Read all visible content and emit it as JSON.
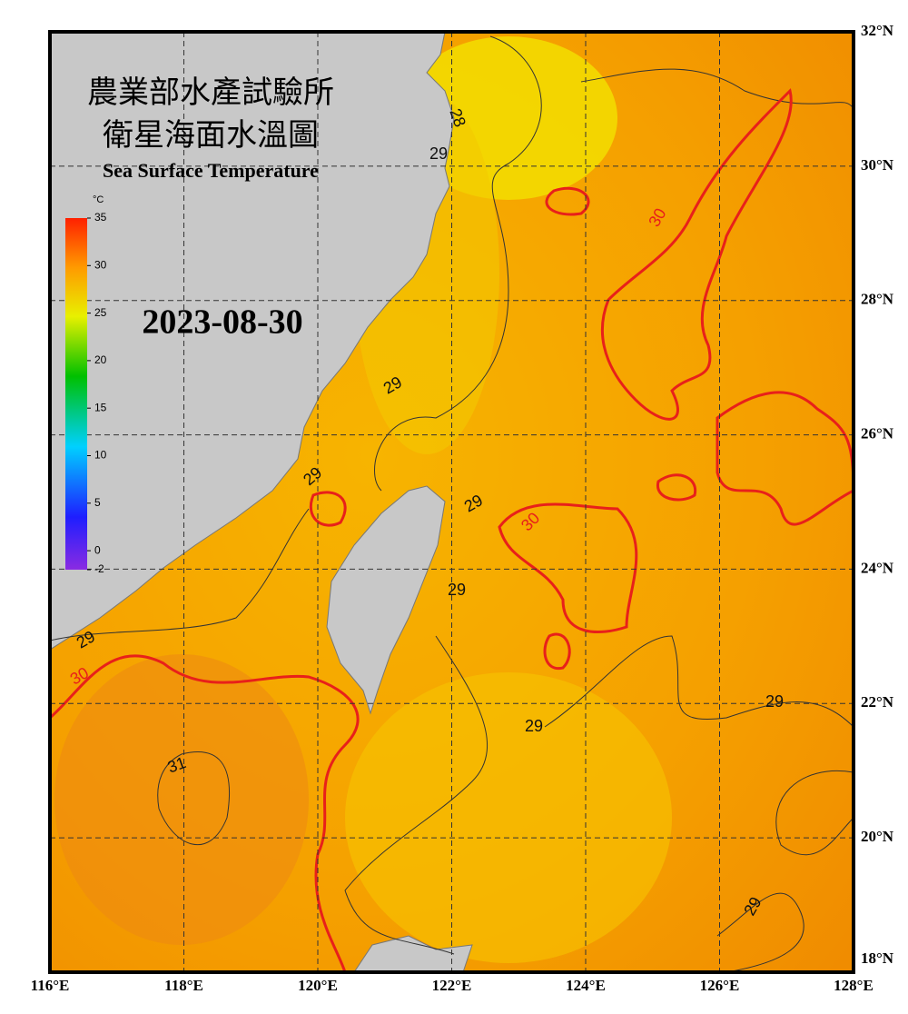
{
  "title_lines": [
    "農業部水產試驗所",
    "衛星海面水溫圖"
  ],
  "subtitle": "Sea Surface Temperature",
  "date": "2023-08-30",
  "colorbar": {
    "unit": "°C",
    "range": [
      -2,
      35
    ],
    "ticks": [
      35,
      30,
      25,
      20,
      15,
      10,
      5,
      0,
      -2
    ]
  },
  "map": {
    "lon_range": [
      116,
      128
    ],
    "lat_range": [
      18,
      32
    ],
    "lon_ticks": [
      {
        "value": 116,
        "label": "116°E"
      },
      {
        "value": 118,
        "label": "118°E"
      },
      {
        "value": 120,
        "label": "120°E"
      },
      {
        "value": 122,
        "label": "122°E"
      },
      {
        "value": 124,
        "label": "124°E"
      },
      {
        "value": 126,
        "label": "126°E"
      },
      {
        "value": 128,
        "label": "128°E"
      }
    ],
    "lat_ticks": [
      {
        "value": 18,
        "label": "18°N"
      },
      {
        "value": 20,
        "label": "20°N"
      },
      {
        "value": 22,
        "label": "22°N"
      },
      {
        "value": 24,
        "label": "24°N"
      },
      {
        "value": 26,
        "label": "26°N"
      },
      {
        "value": 28,
        "label": "28°N"
      },
      {
        "value": 30,
        "label": "30°N"
      },
      {
        "value": 32,
        "label": "32°N"
      }
    ],
    "contour_labels": [
      28,
      29,
      29,
      29,
      29,
      29,
      29,
      30,
      30,
      30,
      29,
      29,
      31,
      29
    ]
  }
}
